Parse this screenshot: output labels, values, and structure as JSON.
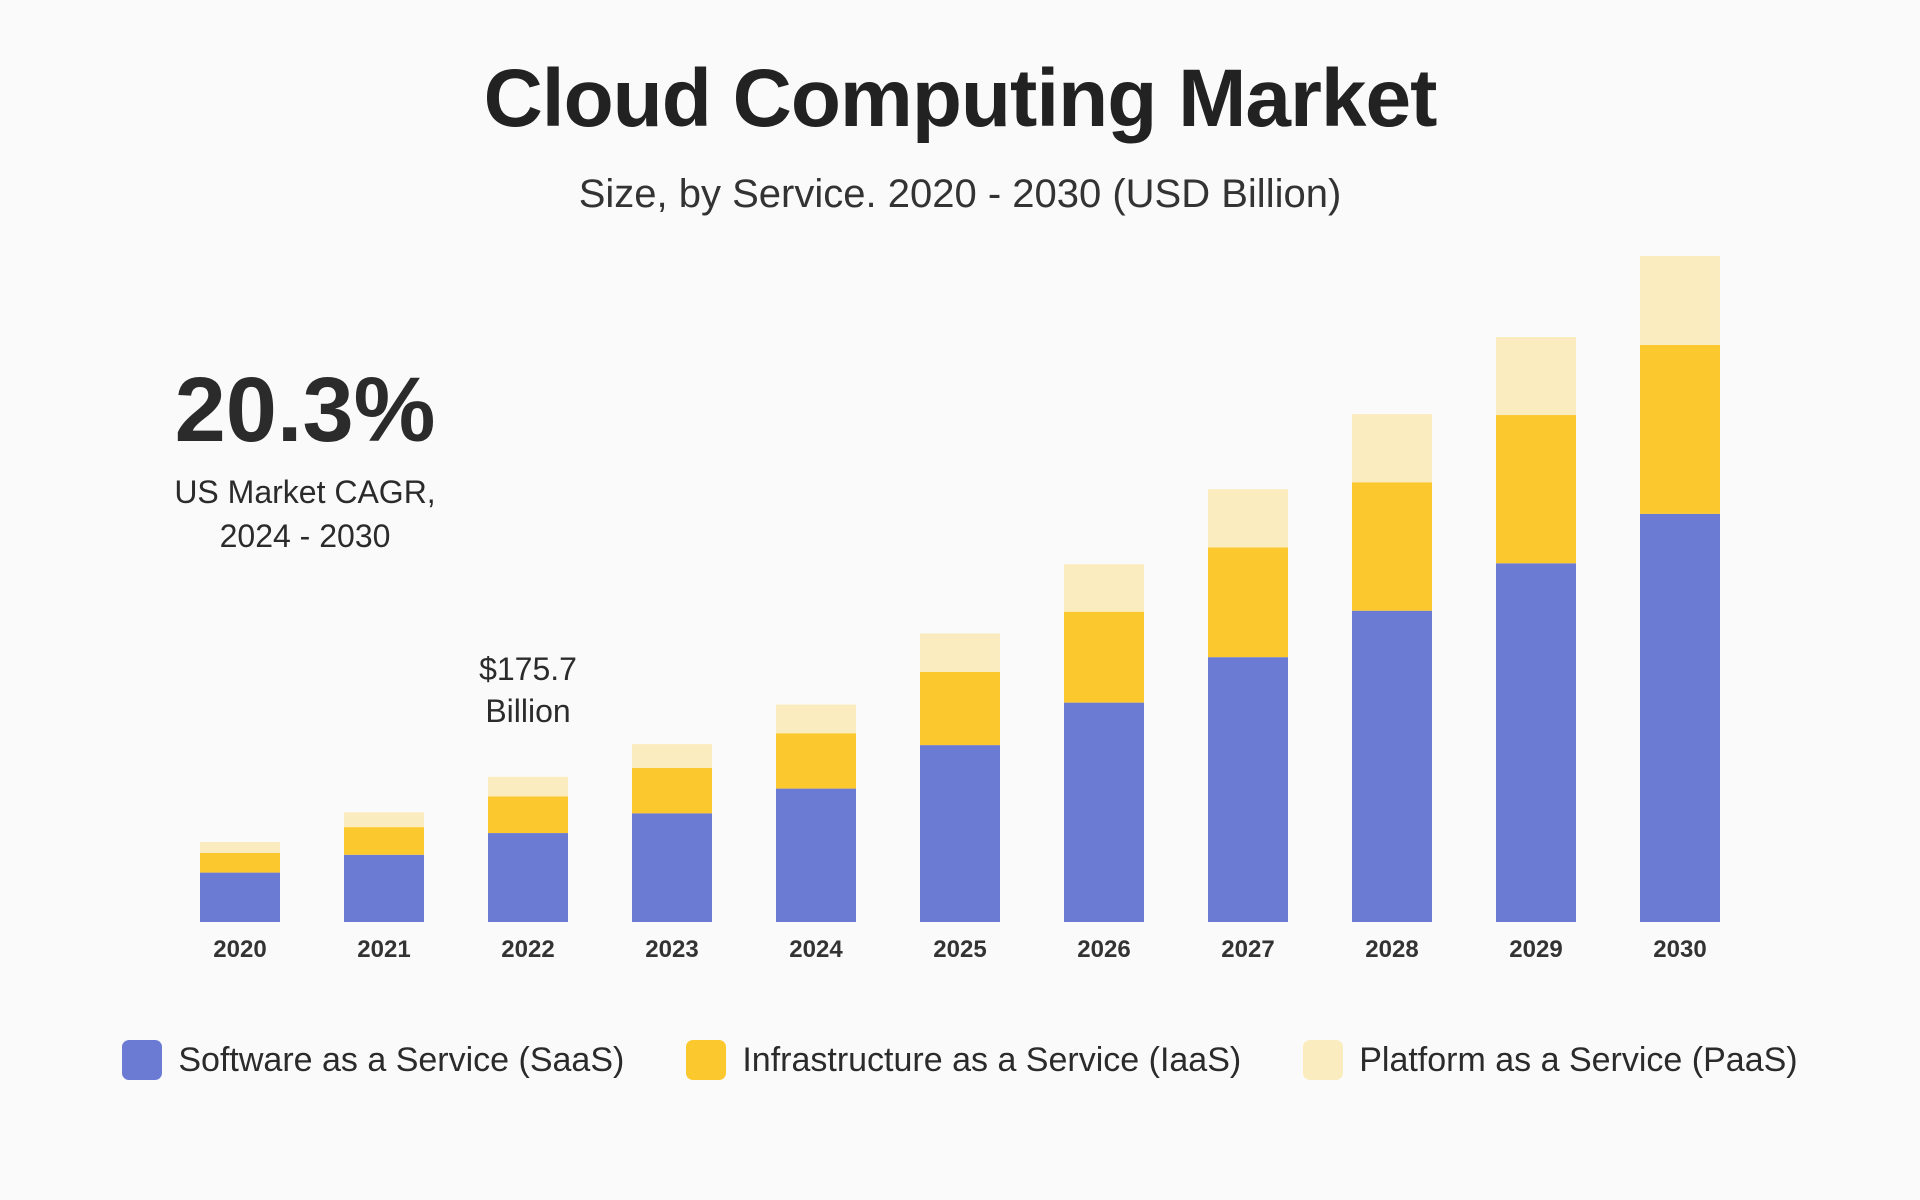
{
  "chart_data": {
    "type": "bar",
    "stacked": true,
    "title": "Cloud Computing Market",
    "subtitle": "Size, by Service. 2020 - 2030 (USD Billion)",
    "categories": [
      "2020",
      "2021",
      "2022",
      "2023",
      "2024",
      "2025",
      "2026",
      "2027",
      "2028",
      "2029",
      "2030"
    ],
    "series": [
      {
        "name": "Software as a Service (SaaS)",
        "color": "#6b7bd3",
        "values": [
          50,
          68,
          90,
          110,
          135,
          179,
          222,
          268,
          315,
          363,
          413
        ]
      },
      {
        "name": "Infrastructure as a Service (IaaS)",
        "color": "#fbc82e",
        "values": [
          20,
          28,
          37,
          46,
          56,
          74,
          92,
          111,
          130,
          150,
          171
        ]
      },
      {
        "name": "Platform as a Service (PaaS)",
        "color": "#fbecbf",
        "values": [
          11,
          15,
          20,
          24,
          29,
          39,
          48,
          59,
          69,
          79,
          90
        ]
      }
    ],
    "ylim": [
      0,
      680
    ],
    "grid": false,
    "legend_position": "bottom",
    "annotations": {
      "cagr_value": "20.3%",
      "cagr_label_line1": "US Market CAGR,",
      "cagr_label_line2": "2024 - 2030",
      "callout_line1": "$175.7",
      "callout_line2": "Billion",
      "callout_category": "2022"
    }
  }
}
